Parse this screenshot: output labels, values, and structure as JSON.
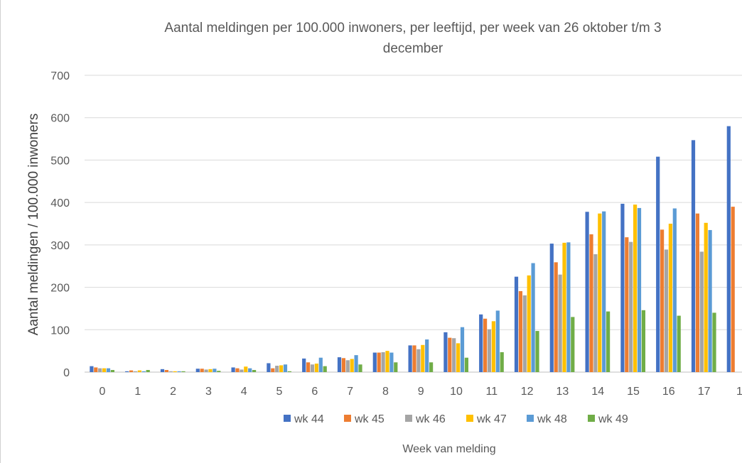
{
  "chart_data": {
    "type": "bar",
    "title_line1": "Aantal meldingen  per 100.000 inwoners, per leeftijd,  per week van 26 oktober t/m 3",
    "title_line2": "december",
    "xlabel": "Week van melding",
    "ylabel": "Aantal meldingen / 100.000 inwoners",
    "ylim": [
      0,
      700
    ],
    "yticks": [
      "0",
      "100",
      "200",
      "300",
      "400",
      "500",
      "600",
      "700"
    ],
    "grid": true,
    "legend_position": "bottom",
    "categories": [
      "0",
      "1",
      "2",
      "3",
      "4",
      "5",
      "6",
      "7",
      "8",
      "9",
      "10",
      "11",
      "12",
      "13",
      "14",
      "15",
      "16",
      "17",
      "1"
    ],
    "series": [
      {
        "name": "wk 44",
        "color": "#4472C4",
        "values": [
          14,
          2,
          7,
          8,
          11,
          21,
          32,
          35,
          46,
          63,
          94,
          136,
          225,
          303,
          378,
          397,
          508,
          547,
          580
        ]
      },
      {
        "name": "wk 45",
        "color": "#ED7D31",
        "values": [
          11,
          4,
          5,
          8,
          9,
          9,
          23,
          33,
          46,
          63,
          81,
          126,
          191,
          259,
          325,
          318,
          336,
          374,
          390
        ]
      },
      {
        "name": "wk 46",
        "color": "#A5A5A5",
        "values": [
          9,
          2,
          2,
          6,
          6,
          15,
          18,
          28,
          47,
          54,
          80,
          101,
          181,
          230,
          278,
          307,
          289,
          284,
          null
        ]
      },
      {
        "name": "wk 47",
        "color": "#FFC000",
        "values": [
          9,
          4,
          2,
          7,
          13,
          16,
          20,
          31,
          50,
          64,
          68,
          120,
          228,
          305,
          374,
          395,
          350,
          352,
          null
        ]
      },
      {
        "name": "wk 48",
        "color": "#5B9BD5",
        "values": [
          9,
          2,
          2,
          8,
          9,
          18,
          34,
          40,
          46,
          77,
          106,
          145,
          257,
          306,
          379,
          387,
          386,
          335,
          null
        ]
      },
      {
        "name": "wk 49",
        "color": "#70AD47",
        "values": [
          5,
          5,
          2,
          3,
          5,
          2,
          14,
          18,
          23,
          23,
          34,
          47,
          97,
          130,
          143,
          146,
          133,
          140,
          null
        ]
      }
    ]
  }
}
